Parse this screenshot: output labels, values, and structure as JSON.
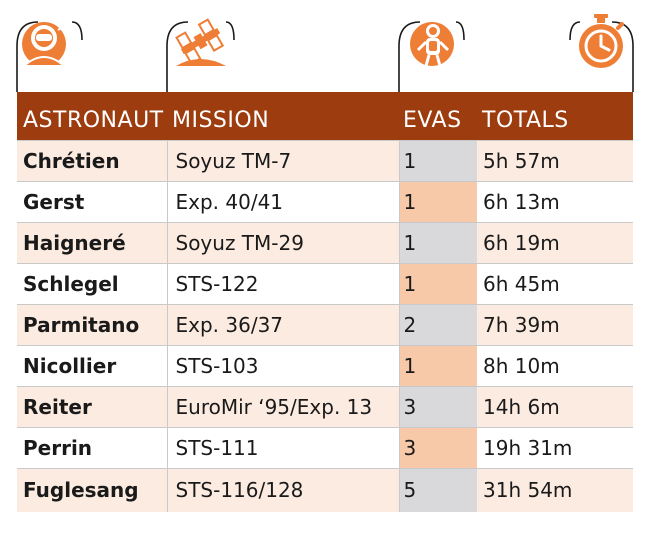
{
  "colors": {
    "header_bg": "#9c3c0f",
    "icon_orange": "#ee7d35",
    "row_shade": "#fcebe0",
    "evas_grey": "#d9d9db",
    "evas_peach": "#f7c9a8",
    "highlight": "#ee7d35"
  },
  "icons": [
    "astronaut-icon",
    "space-station-icon",
    "spacewalker-icon",
    "stopwatch-icon"
  ],
  "columns": {
    "astronaut": "ASTRONAUT",
    "mission": "MISSION",
    "evas": "EVAS",
    "totals": "TOTALS"
  },
  "rows": [
    {
      "astronaut": "Chrétien",
      "mission": "Soyuz TM-7",
      "evas": "1",
      "total": "5h 57m"
    },
    {
      "astronaut": "Gerst",
      "mission": "Exp. 40/41",
      "evas": "1",
      "total": "6h 13m"
    },
    {
      "astronaut": "Haigneré",
      "mission": "Soyuz TM-29",
      "evas": "1",
      "total": "6h 19m"
    },
    {
      "astronaut": "Schlegel",
      "mission": "STS-122",
      "evas": "1",
      "total": "6h 45m"
    },
    {
      "astronaut": "Parmitano",
      "mission": "Exp. 36/37",
      "evas": "2",
      "total": "7h 39m"
    },
    {
      "astronaut": "Nicollier",
      "mission": "STS-103",
      "evas": "1",
      "total": "8h 10m"
    },
    {
      "astronaut": "Reiter",
      "mission": "EuroMir ‘95/Exp. 13",
      "evas": "3",
      "total": "14h 6m"
    },
    {
      "astronaut": "Perrin",
      "mission": "STS-111",
      "evas": "3",
      "total": "19h 31m"
    },
    {
      "astronaut": "Fuglesang",
      "mission": "STS-116/128",
      "evas": "5",
      "total": "31h 54m"
    }
  ]
}
